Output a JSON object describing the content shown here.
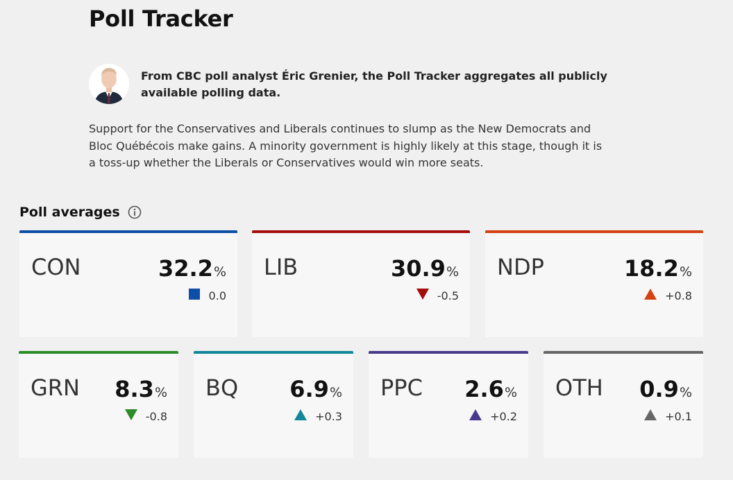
{
  "header": {
    "title": "Poll Tracker"
  },
  "author": {
    "text": "From CBC poll analyst Éric Grenier, the Poll Tracker aggregates all publicly available polling data."
  },
  "summary": "Support for the Conservatives and Liberals continues to slump as the New Democrats and Bloc Québécois make gains. A minority government is highly likely at this stage, though it is a toss-up whether the Liberals or Conservatives would win more seats.",
  "poll_averages": {
    "title": "Poll averages",
    "info_icon": "info-icon",
    "parties": [
      {
        "abbr": "CON",
        "value": "32.2",
        "pct": "%",
        "change": "0.0",
        "trend": "none",
        "color": "#0d4ea6"
      },
      {
        "abbr": "LIB",
        "value": "30.9",
        "pct": "%",
        "change": "-0.5",
        "trend": "down",
        "color": "#a50d0d"
      },
      {
        "abbr": "NDP",
        "value": "18.2",
        "pct": "%",
        "change": "+0.8",
        "trend": "up",
        "color": "#d54110"
      },
      {
        "abbr": "GRN",
        "value": "8.3",
        "pct": "%",
        "change": "-0.8",
        "trend": "down",
        "color": "#2e8b2a"
      },
      {
        "abbr": "BQ",
        "value": "6.9",
        "pct": "%",
        "change": "+0.3",
        "trend": "up",
        "color": "#12879a"
      },
      {
        "abbr": "PPC",
        "value": "2.6",
        "pct": "%",
        "change": "+0.2",
        "trend": "up",
        "color": "#4a3a8c"
      },
      {
        "abbr": "OTH",
        "value": "0.9",
        "pct": "%",
        "change": "+0.1",
        "trend": "up",
        "color": "#666666"
      }
    ]
  }
}
